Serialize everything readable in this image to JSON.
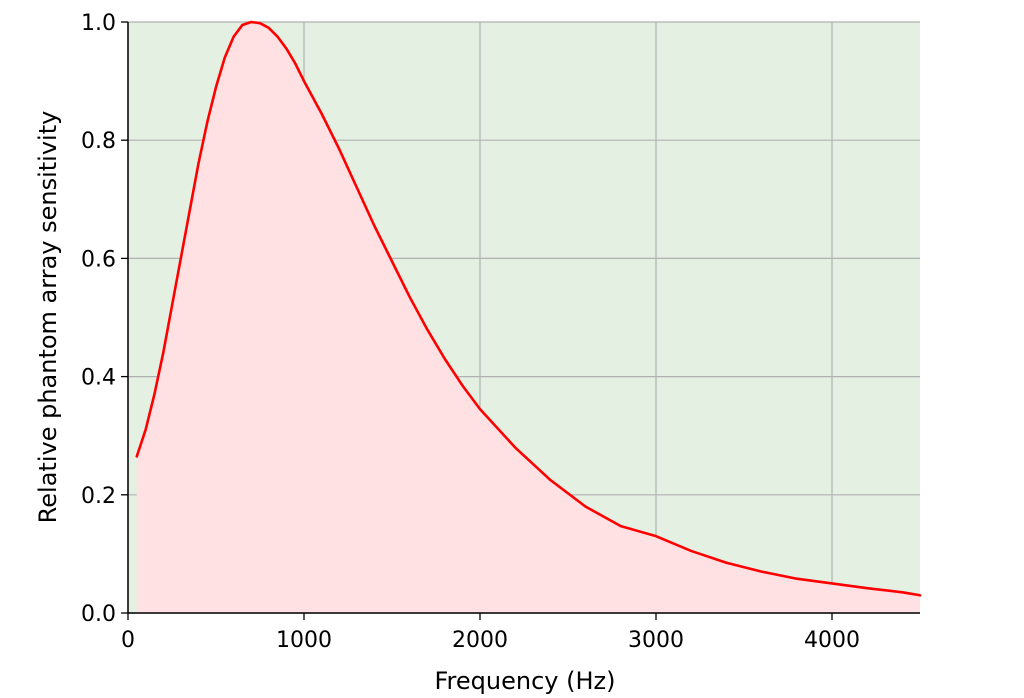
{
  "chart_data": {
    "type": "area",
    "title": "",
    "xlabel": "Frequency (Hz)",
    "ylabel": "Relative phantom array sensitivity",
    "xlim": [
      0,
      4500
    ],
    "ylim": [
      0,
      1.0
    ],
    "xticks": [
      0,
      1000,
      2000,
      3000,
      4000
    ],
    "xtick_labels": [
      "0",
      "1000",
      "2000",
      "3000",
      "4000"
    ],
    "yticks": [
      0.0,
      0.2,
      0.4,
      0.6,
      0.8,
      1.0
    ],
    "ytick_labels": [
      "0.0",
      "0.2",
      "0.4",
      "0.6",
      "0.8",
      "1.0"
    ],
    "grid": true,
    "series": [
      {
        "x": [
          50,
          100,
          150,
          200,
          250,
          300,
          350,
          400,
          450,
          500,
          550,
          600,
          650,
          700,
          750,
          800,
          850,
          900,
          950,
          1000,
          1100,
          1200,
          1300,
          1400,
          1500,
          1600,
          1700,
          1800,
          1900,
          2000,
          2200,
          2400,
          2600,
          2800,
          3000,
          3200,
          3400,
          3600,
          3800,
          4000,
          4200,
          4400,
          4500
        ],
        "y": [
          0.265,
          0.31,
          0.37,
          0.44,
          0.52,
          0.6,
          0.68,
          0.76,
          0.83,
          0.89,
          0.94,
          0.975,
          0.995,
          1.0,
          0.998,
          0.99,
          0.975,
          0.955,
          0.93,
          0.9,
          0.845,
          0.785,
          0.72,
          0.655,
          0.595,
          0.535,
          0.48,
          0.43,
          0.385,
          0.345,
          0.28,
          0.225,
          0.18,
          0.147,
          0.13,
          0.105,
          0.085,
          0.07,
          0.058,
          0.05,
          0.042,
          0.035,
          0.03
        ],
        "color": "#ff0000"
      }
    ],
    "colors": {
      "line": "#ff0000",
      "fill_under": "#ffe1e3",
      "fill_above": "#e4f0e2",
      "grid": "#b0b0b0"
    }
  }
}
